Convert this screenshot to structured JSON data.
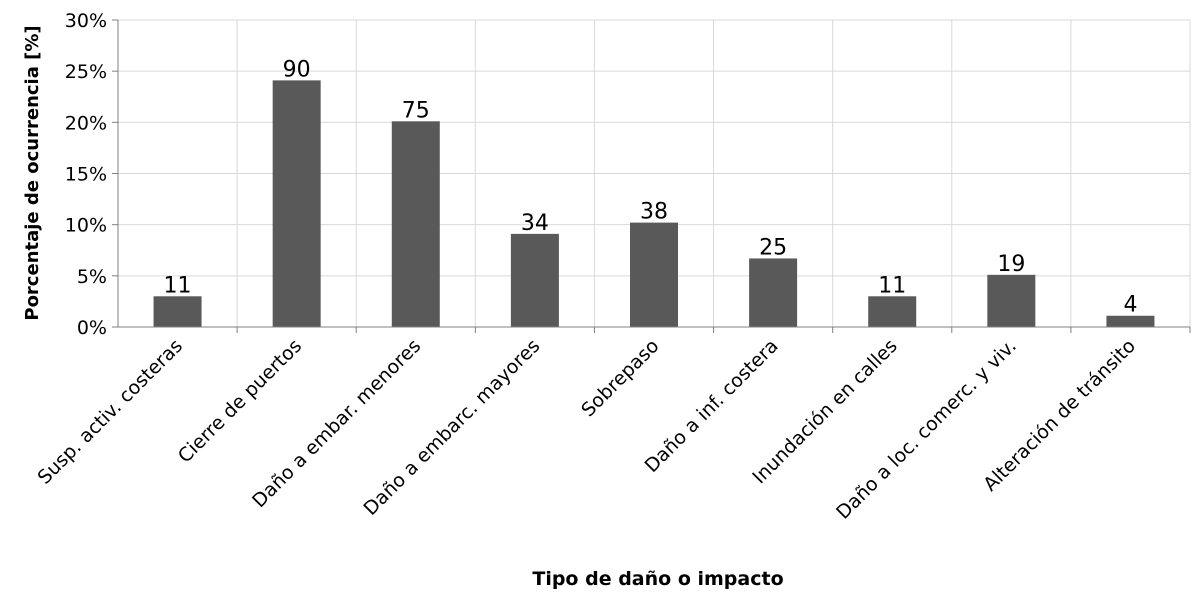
{
  "chart_data": {
    "type": "bar",
    "categories": [
      "Susp. activ. costeras",
      "Cierre de puertos",
      "Daño a embar. menores",
      "Daño a embarc. mayores",
      "Sobrepaso",
      "Daño a inf. costera",
      "Inundación en calles",
      "Daño a loc. comerc. y viv.",
      "Alteración de tránsito"
    ],
    "values": [
      3,
      24.1,
      20.1,
      9.1,
      10.2,
      6.7,
      3,
      5.1,
      1.1
    ],
    "data_labels": [
      "11",
      "90",
      "75",
      "34",
      "38",
      "25",
      "11",
      "19",
      "4"
    ],
    "ylabel": "Porcentaje de ocurrencia [%]",
    "xlabel": "Tipo de daño o impacto",
    "ylim": [
      0,
      30
    ],
    "yticks": [
      "0%",
      "5%",
      "10%",
      "15%",
      "20%",
      "25%",
      "30%"
    ],
    "grid": true,
    "bar_color": "#595959"
  }
}
